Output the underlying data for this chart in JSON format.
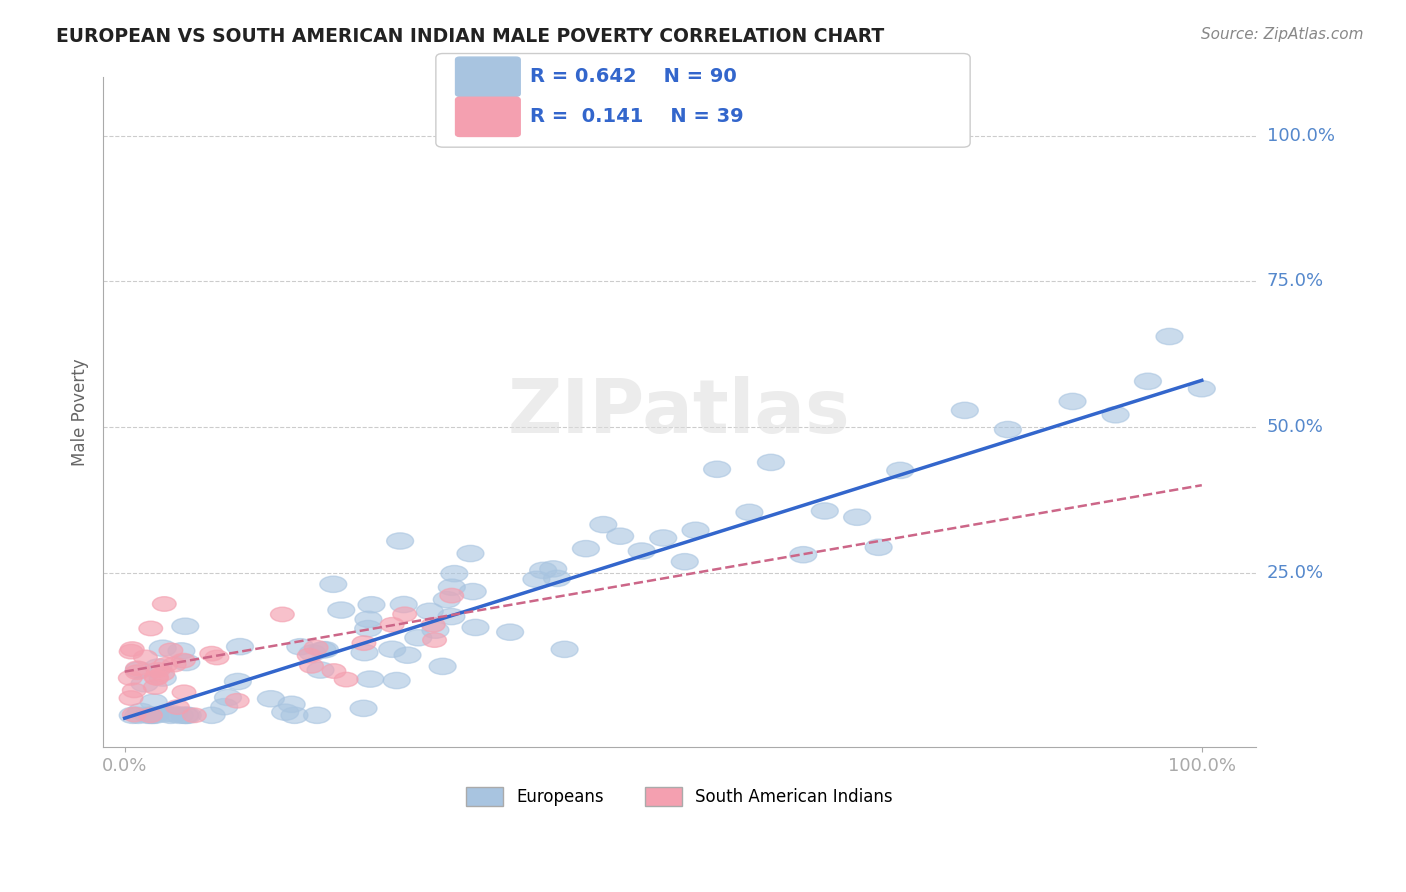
{
  "title": "EUROPEAN VS SOUTH AMERICAN INDIAN MALE POVERTY CORRELATION CHART",
  "source": "Source: ZipAtlas.com",
  "ylabel": "Male Poverty",
  "xlim": [
    -0.02,
    1.05
  ],
  "ylim": [
    -0.05,
    1.1
  ],
  "xtick_labels": [
    "0.0%",
    "100.0%"
  ],
  "ytick_labels": [
    "25.0%",
    "50.0%",
    "75.0%",
    "100.0%"
  ],
  "ytick_positions": [
    0.25,
    0.5,
    0.75,
    1.0
  ],
  "grid_color": "#cccccc",
  "background_color": "#ffffff",
  "blue_color": "#a8c4e0",
  "pink_color": "#f4a0b0",
  "blue_line_color": "#3366cc",
  "pink_line_color": "#cc6688",
  "legend_R1": "0.642",
  "legend_N1": "90",
  "legend_R2": "0.141",
  "legend_N2": "39",
  "watermark": "ZIPatlas",
  "title_color": "#222222",
  "axis_label_color": "#5588cc",
  "blue_slope": 0.58,
  "blue_intercept": 0.0,
  "pink_slope": 0.32,
  "pink_intercept": 0.08
}
